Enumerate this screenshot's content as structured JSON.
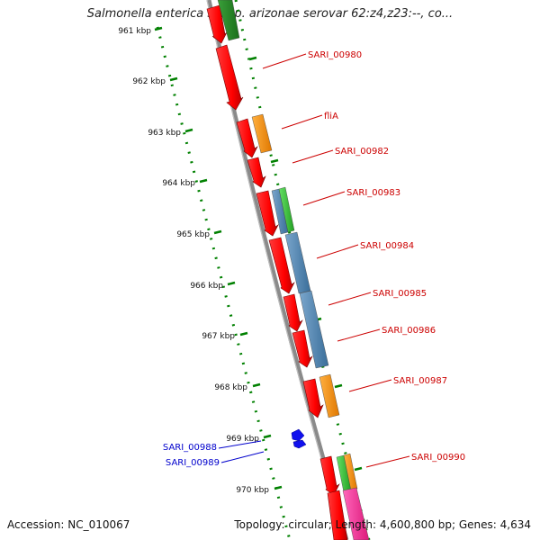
{
  "title": "Salmonella enterica subsp. arizonae serovar 62:z4,z23:--, co...",
  "accession": "Accession: NC_010067",
  "summary": "Topology: circular; Length: 4,600,800 bp; Genes: 4,634",
  "ruler": {
    "unit": "kbp",
    "ticks": [
      "961 kbp",
      "962 kbp",
      "963 kbp",
      "964 kbp",
      "965 kbp",
      "966 kbp",
      "967 kbp",
      "968 kbp",
      "969 kbp",
      "970 kbp"
    ]
  },
  "gene_labels": [
    "SARI_00980",
    "fliA",
    "SARI_00982",
    "SARI_00983",
    "SARI_00984",
    "SARI_00985",
    "SARI_00986",
    "SARI_00987",
    "SARI_00988",
    "SARI_00989",
    "SARI_00990"
  ],
  "colors": {
    "cds": "#ff0000",
    "cog_orange": "#ff8c00",
    "cog_green": "#33cc33",
    "cog_darkgreen": "#228b22",
    "cog_blue": "#4682b4",
    "cog_pink": "#ff3399",
    "label_red": "#cc0000",
    "label_blue": "#0000cc",
    "ruler": "#008000",
    "backbone": "#808080"
  }
}
